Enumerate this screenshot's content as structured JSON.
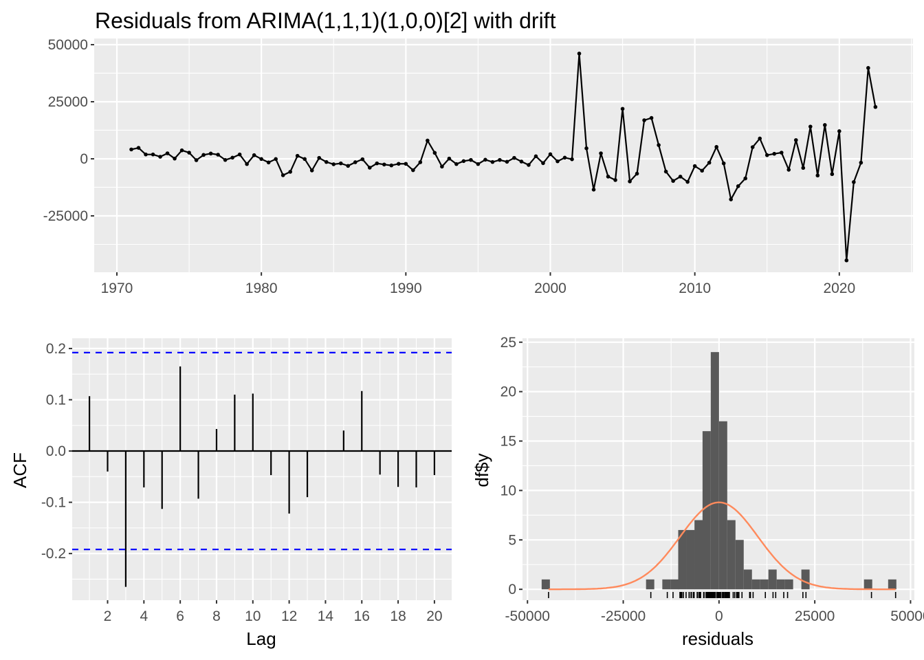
{
  "chart_data": [
    {
      "type": "line",
      "title": "Residuals from ARIMA(1,1,1)(1,0,0)[2] with drift",
      "xlabel": "",
      "ylabel": "",
      "x_start": 1971.0,
      "x_step": 0.5,
      "values": [
        4100,
        4800,
        1900,
        1900,
        900,
        2400,
        100,
        3700,
        2700,
        -600,
        1700,
        2300,
        1800,
        -500,
        500,
        1900,
        -2300,
        1600,
        -100,
        -1600,
        -100,
        -7200,
        -5700,
        1300,
        -100,
        -5100,
        400,
        -1400,
        -2400,
        -2000,
        -3100,
        -1500,
        -200,
        -3900,
        -2000,
        -2500,
        -2900,
        -2200,
        -2200,
        -5000,
        -1500,
        8000,
        2600,
        -3400,
        100,
        -2300,
        -1000,
        -500,
        -2300,
        -400,
        -1400,
        -500,
        -1300,
        400,
        -1200,
        -2700,
        1100,
        -1900,
        2000,
        -1100,
        500,
        -200,
        46100,
        4600,
        -13500,
        2400,
        -7800,
        -9300,
        21900,
        -9900,
        -6500,
        16900,
        17900,
        6000,
        -5600,
        -9700,
        -7800,
        -10100,
        -3200,
        -5200,
        -1700,
        5200,
        -2000,
        -17800,
        -12000,
        -8600,
        5100,
        8900,
        1600,
        2200,
        2700,
        -4800,
        8200,
        -4000,
        14100,
        -7300,
        14800,
        -6700,
        12100,
        -44500,
        -10200,
        -1700,
        39800,
        22700
      ],
      "xlim": [
        1968.43,
        2025.1
      ],
      "ylim": [
        -49700,
        52700
      ],
      "xticks": [
        1970,
        1980,
        1990,
        2000,
        2010,
        2020
      ],
      "xtick_labels": [
        "1970",
        "1980",
        "1990",
        "2000",
        "2010",
        "2020"
      ],
      "yticks": [
        -25000,
        0,
        25000,
        50000
      ],
      "ytick_labels": [
        "-25000",
        "0",
        "25000",
        "50000"
      ],
      "grid": true
    },
    {
      "type": "bar",
      "title": "",
      "xlabel": "Lag",
      "ylabel": "ACF",
      "lags": [
        1,
        2,
        3,
        4,
        5,
        6,
        7,
        8,
        9,
        10,
        11,
        12,
        13,
        14,
        15,
        16,
        17,
        18,
        19,
        20
      ],
      "values": [
        0.107,
        -0.04,
        -0.265,
        -0.071,
        -0.113,
        0.165,
        -0.093,
        0.043,
        0.11,
        0.112,
        -0.047,
        -0.122,
        -0.09,
        0.001,
        0.04,
        0.117,
        -0.046,
        -0.07,
        -0.071,
        -0.047
      ],
      "ci": 0.192,
      "ci_color": "#0000ff",
      "xlim": [
        0.05,
        20.95
      ],
      "ylim": [
        -0.291,
        0.22
      ],
      "xticks": [
        2,
        4,
        6,
        8,
        10,
        12,
        14,
        16,
        18,
        20
      ],
      "xtick_labels": [
        "2",
        "4",
        "6",
        "8",
        "10",
        "12",
        "14",
        "16",
        "18",
        "20"
      ],
      "yticks": [
        -0.2,
        -0.1,
        0.0,
        0.1,
        0.2
      ],
      "ytick_labels": [
        "-0.2",
        "-0.1",
        "0.0",
        "0.1",
        "0.2"
      ],
      "grid": true
    },
    {
      "type": "bar",
      "title": "",
      "xlabel": "residuals",
      "ylabel": "df$y",
      "bin_width": 2150,
      "bins": [
        {
          "x0": -46300,
          "count": 1
        },
        {
          "x0": -19050,
          "count": 1
        },
        {
          "x0": -14800,
          "count": 1
        },
        {
          "x0": -12650,
          "count": 1
        },
        {
          "x0": -10650,
          "count": 6
        },
        {
          "x0": -8500,
          "count": 6
        },
        {
          "x0": -6400,
          "count": 7
        },
        {
          "x0": -4300,
          "count": 16
        },
        {
          "x0": -2150,
          "count": 24
        },
        {
          "x0": 0,
          "count": 17
        },
        {
          "x0": 2150,
          "count": 7
        },
        {
          "x0": 4300,
          "count": 5
        },
        {
          "x0": 6450,
          "count": 2
        },
        {
          "x0": 8600,
          "count": 1
        },
        {
          "x0": 10750,
          "count": 1
        },
        {
          "x0": 12900,
          "count": 2
        },
        {
          "x0": 15050,
          "count": 1
        },
        {
          "x0": 17200,
          "count": 1
        },
        {
          "x0": 21500,
          "count": 2
        },
        {
          "x0": 37850,
          "count": 1
        },
        {
          "x0": 44150,
          "count": 1
        }
      ],
      "normal_curve": {
        "mean": 0,
        "sd": 10140,
        "n": 104,
        "color": "#ff8a5c"
      },
      "bar_color": "#595959",
      "xlim": [
        -51300,
        51000
      ],
      "ylim": [
        -1.1,
        25.4
      ],
      "xticks": [
        -50000,
        -25000,
        0,
        25000,
        50000
      ],
      "xtick_labels": [
        "-50000",
        "-25000",
        "0",
        "25000",
        "50000"
      ],
      "yticks": [
        0,
        5,
        10,
        15,
        20,
        25
      ],
      "ytick_labels": [
        "0",
        "5",
        "10",
        "15",
        "20",
        "25"
      ],
      "grid": true
    }
  ]
}
